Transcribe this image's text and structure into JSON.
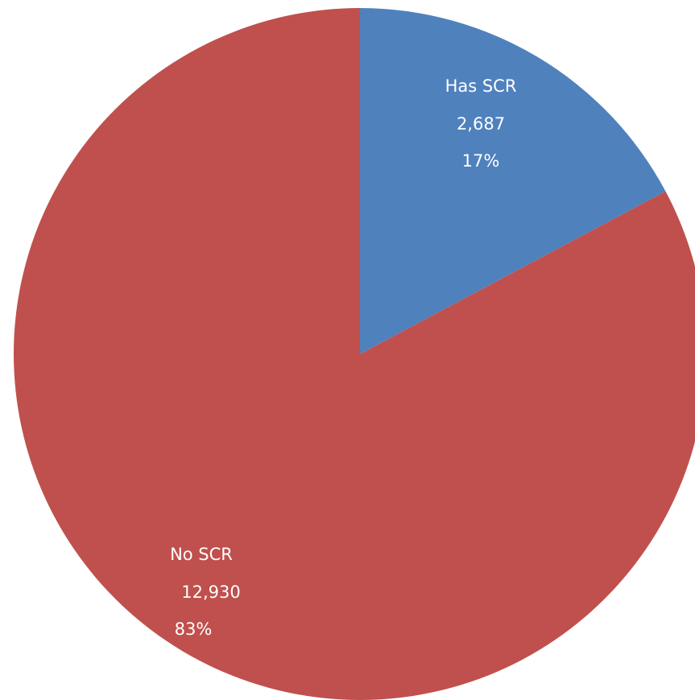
{
  "chart_data": {
    "type": "pie",
    "categories": [
      "Has SCR",
      "No SCR"
    ],
    "values": [
      2687,
      12930
    ],
    "value_labels": [
      "2,687",
      "12,930"
    ],
    "percentages": [
      17,
      83
    ],
    "percentage_labels": [
      "17%",
      "83%"
    ],
    "colors": [
      "#4f81bd",
      "#c0504d"
    ]
  }
}
